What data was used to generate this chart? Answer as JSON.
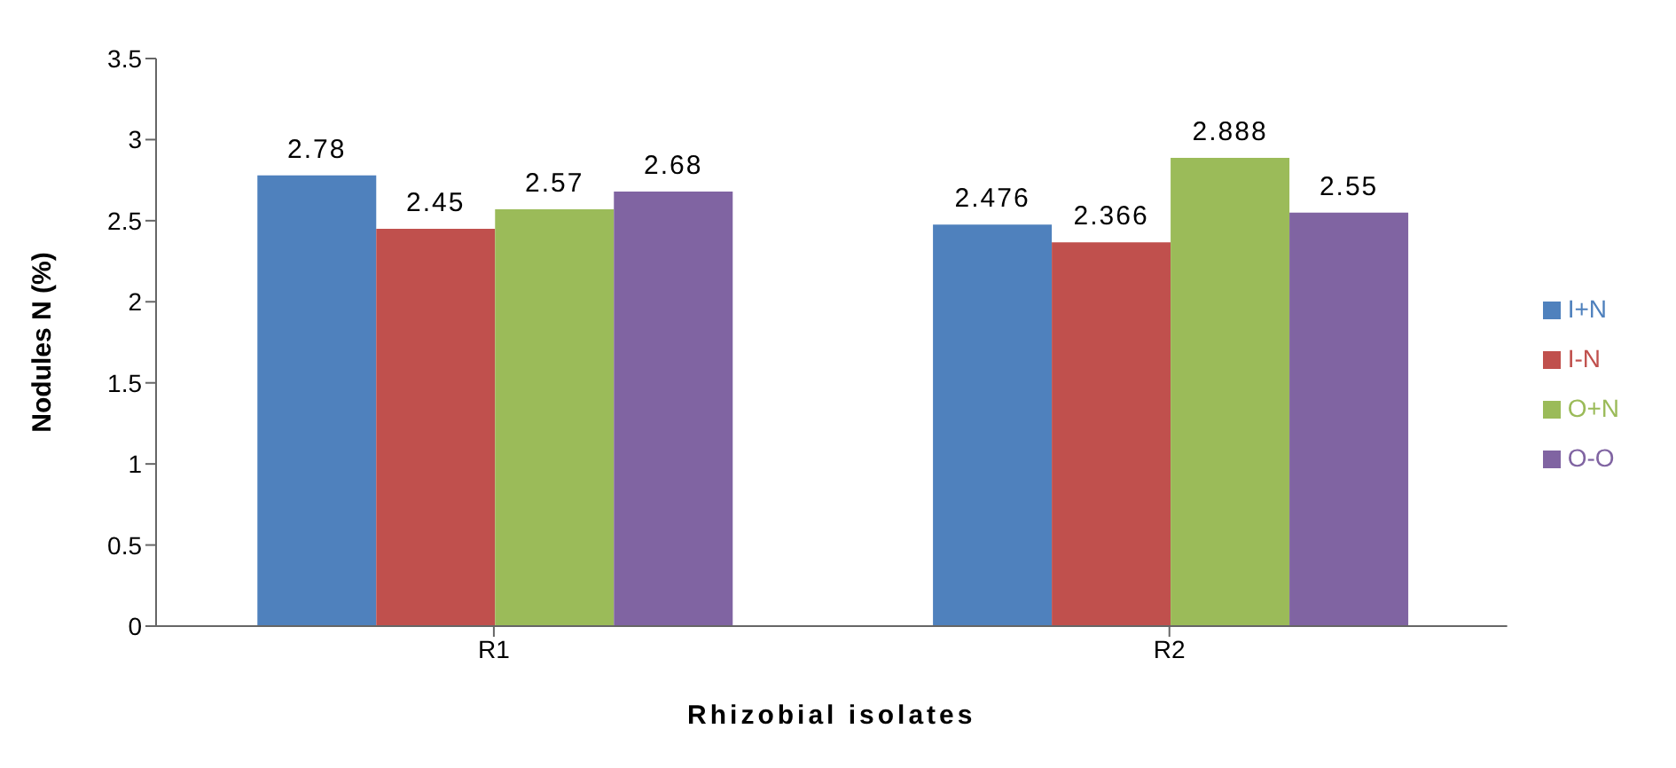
{
  "chart_data": {
    "type": "bar",
    "xlabel": "Rhizobial isolates",
    "ylabel": "Nodules N (%)",
    "categories": [
      "R1",
      "R2"
    ],
    "series": [
      {
        "name": "I+N",
        "color": "#4f81bd",
        "values": [
          2.78,
          2.476
        ]
      },
      {
        "name": "I-N",
        "color": "#c0504d",
        "values": [
          2.45,
          2.366
        ]
      },
      {
        "name": "O+N",
        "color": "#9bbb59",
        "values": [
          2.57,
          2.888
        ]
      },
      {
        "name": "O-O",
        "color": "#8064a2",
        "values": [
          2.68,
          2.55
        ]
      }
    ],
    "ylim": [
      0,
      3.5
    ],
    "yticks": [
      0,
      0.5,
      1,
      1.5,
      2,
      2.5,
      3,
      3.5
    ],
    "grid": false,
    "legend": "right",
    "data_labels": true
  }
}
